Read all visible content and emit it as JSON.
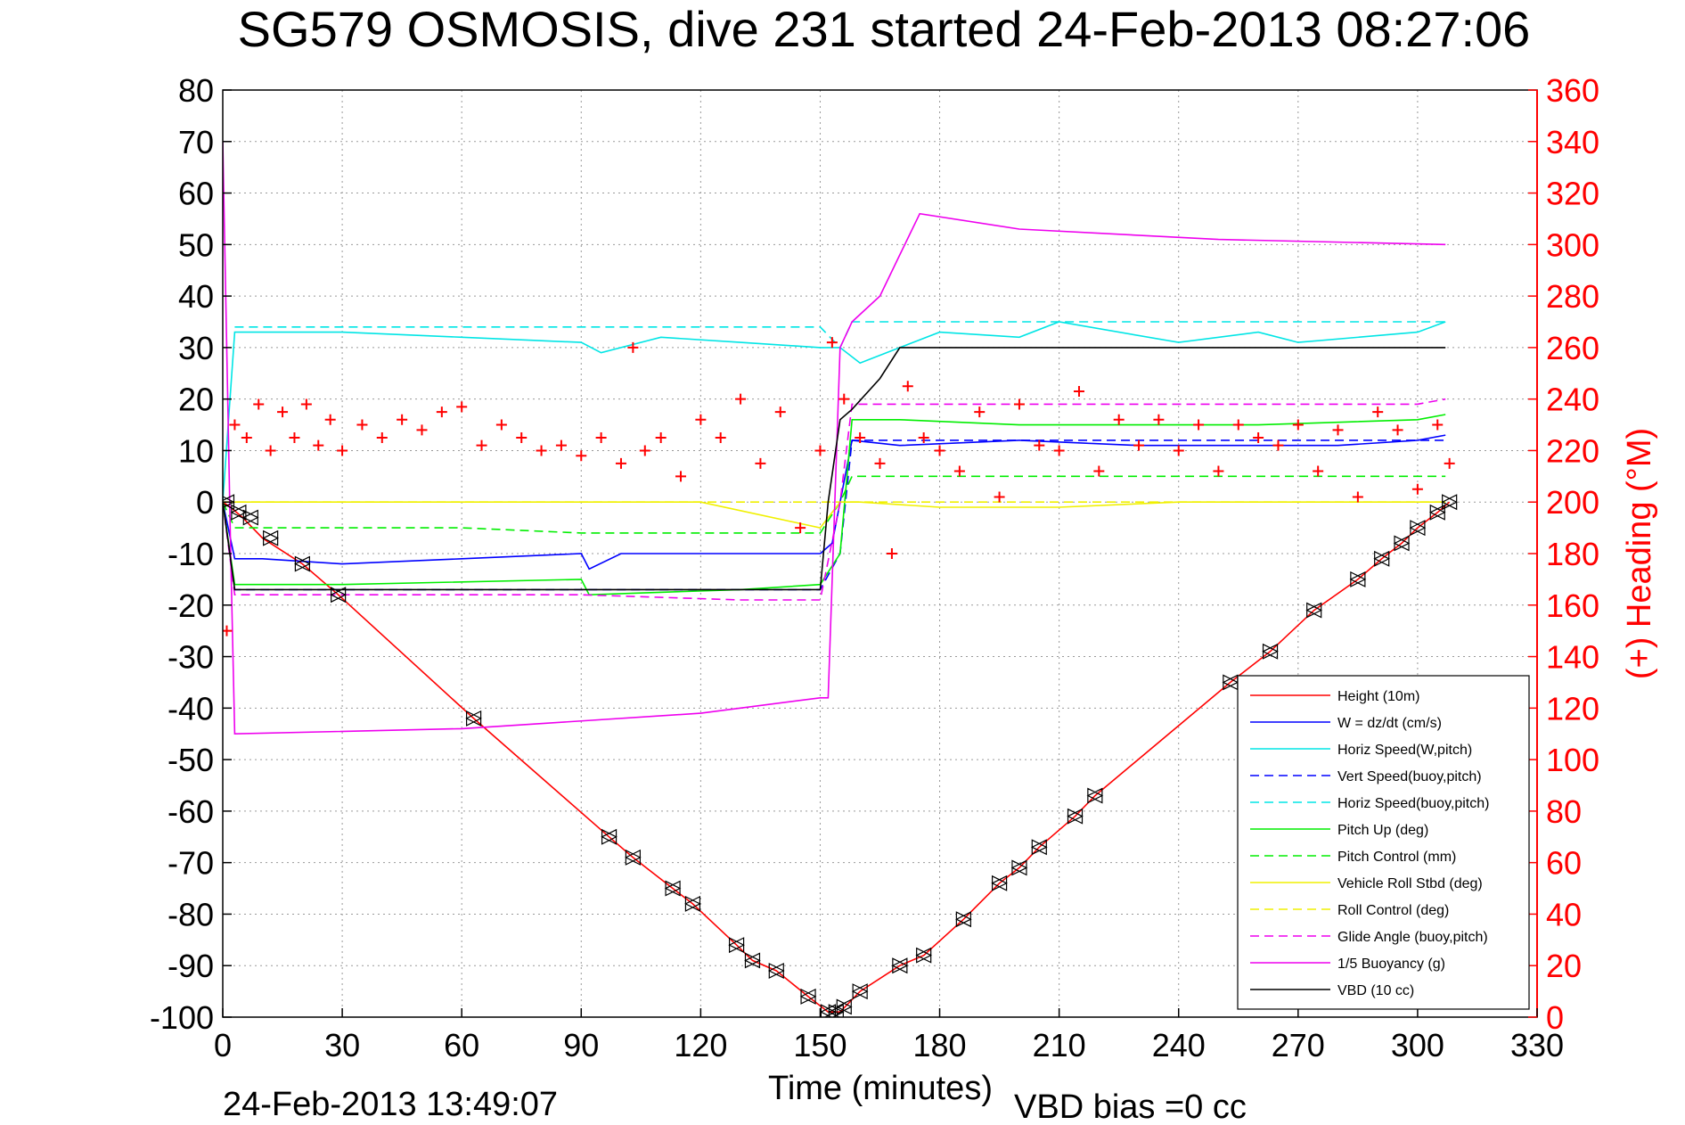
{
  "title": "SG579 OSMOSIS, dive 231 started 24-Feb-2013 08:27:06",
  "footer": {
    "timestamp": "24-Feb-2013 13:49:07",
    "vbd_bias": "VBD bias =0 cc"
  },
  "chart_data": {
    "type": "line",
    "title": "SG579 OSMOSIS, dive 231 started 24-Feb-2013 08:27:06",
    "xlabel": "Time (minutes)",
    "ylabel": "",
    "y2label": "(+) Heading (°M)",
    "xlim": [
      0,
      330
    ],
    "ylim": [
      -100,
      80
    ],
    "y2lim": [
      0,
      360
    ],
    "xticks": [
      "0",
      "30",
      "60",
      "90",
      "120",
      "150",
      "180",
      "210",
      "240",
      "270",
      "300",
      "330"
    ],
    "yticks": [
      "80",
      "70",
      "60",
      "50",
      "40",
      "30",
      "20",
      "10",
      "0",
      "-10",
      "-20",
      "-30",
      "-40",
      "-50",
      "-60",
      "-70",
      "-80",
      "-90",
      "-100"
    ],
    "y2ticks": [
      "360",
      "340",
      "320",
      "300",
      "280",
      "260",
      "240",
      "220",
      "200",
      "180",
      "160",
      "140",
      "120",
      "100",
      "80",
      "60",
      "40",
      "20",
      "0"
    ],
    "grid": true,
    "legend_position": "bottom-right",
    "colors": {
      "red": "#ff0000",
      "blue": "#0000ff",
      "cyan": "#00e5e5",
      "green": "#00ee00",
      "yellow": "#f0f000",
      "magenta": "#ee00ee",
      "black": "#000000"
    },
    "series": [
      {
        "name": "Height (10m)",
        "color": "#ff0000",
        "style": "solid",
        "x": [
          0,
          2,
          5,
          10,
          20,
          29,
          63,
          97,
          103,
          113,
          118,
          129,
          133,
          139,
          147,
          152,
          155,
          160,
          170,
          176,
          186,
          195,
          200,
          205,
          214,
          219,
          253,
          263,
          274,
          285,
          291,
          296,
          300,
          305,
          308
        ],
        "y": [
          0,
          -1,
          -3,
          -7,
          -12,
          -18,
          -42,
          -65,
          -69,
          -75,
          -78,
          -86,
          -89,
          -91,
          -96,
          -99,
          -99,
          -95,
          -90,
          -88,
          -81,
          -74,
          -71,
          -67,
          -61,
          -57,
          -35,
          -29,
          -21,
          -15,
          -11,
          -8,
          -5,
          -2,
          0
        ]
      },
      {
        "name": "W = dz/dt (cm/s)",
        "color": "#0000ff",
        "style": "solid",
        "x": [
          0,
          3,
          10,
          30,
          60,
          90,
          92,
          100,
          130,
          150,
          153,
          158,
          170,
          200,
          230,
          260,
          280,
          300,
          307
        ],
        "y": [
          0,
          -11,
          -11,
          -12,
          -11,
          -10,
          -13,
          -10,
          -10,
          -10,
          -8,
          12,
          11,
          12,
          11,
          11,
          11,
          12,
          13
        ]
      },
      {
        "name": "Horiz Speed(W,pitch)",
        "color": "#00e5e5",
        "style": "solid",
        "x": [
          0,
          3,
          10,
          30,
          60,
          90,
          95,
          110,
          130,
          150,
          155,
          160,
          170,
          180,
          200,
          210,
          240,
          260,
          270,
          300,
          307
        ],
        "y": [
          0,
          33,
          33,
          33,
          32,
          31,
          29,
          32,
          31,
          30,
          30,
          27,
          30,
          33,
          32,
          35,
          31,
          33,
          31,
          33,
          35
        ]
      },
      {
        "name": "Vert Speed(buoy,pitch)",
        "color": "#0000ff",
        "style": "dashed",
        "x": [
          0,
          3,
          150,
          155,
          158,
          300,
          307
        ],
        "y": [
          0,
          -17,
          -17,
          -10,
          12,
          12,
          12
        ]
      },
      {
        "name": "Horiz Speed(buoy,pitch)",
        "color": "#00e5e5",
        "style": "dashed",
        "x": [
          3,
          150,
          155,
          158,
          300,
          307
        ],
        "y": [
          34,
          34,
          30,
          35,
          35,
          35
        ]
      },
      {
        "name": "Pitch Up (deg)",
        "color": "#00ee00",
        "style": "solid",
        "x": [
          0,
          3,
          20,
          30,
          90,
          92,
          130,
          150,
          155,
          158,
          170,
          200,
          260,
          300,
          307
        ],
        "y": [
          0,
          -16,
          -16,
          -16,
          -15,
          -18,
          -17,
          -16,
          -10,
          16,
          16,
          15,
          15,
          16,
          17
        ]
      },
      {
        "name": "Pitch Control (mm)",
        "color": "#00ee00",
        "style": "dashed",
        "x": [
          0,
          3,
          60,
          90,
          130,
          150,
          155,
          158,
          300,
          307
        ],
        "y": [
          0,
          -5,
          -5,
          -6,
          -6,
          -6,
          0,
          5,
          5,
          5
        ]
      },
      {
        "name": "Vehicle Roll Stbd (deg)",
        "color": "#f0f000",
        "style": "solid",
        "x": [
          0,
          3,
          30,
          60,
          90,
          120,
          150,
          155,
          160,
          180,
          210,
          240,
          270,
          300,
          307
        ],
        "y": [
          0,
          0,
          0,
          0,
          0,
          0,
          -5,
          0,
          0,
          -1,
          -1,
          0,
          0,
          0,
          0
        ]
      },
      {
        "name": "Roll Control (deg)",
        "color": "#f0f000",
        "style": "dashed",
        "x": [
          0,
          307
        ],
        "y": [
          0,
          0
        ]
      },
      {
        "name": "Glide Angle (buoy,pitch)",
        "color": "#ee00ee",
        "style": "dashed",
        "x": [
          0,
          3,
          90,
          130,
          150,
          155,
          158,
          300,
          307
        ],
        "y": [
          0,
          -18,
          -18,
          -19,
          -19,
          0,
          19,
          19,
          20
        ]
      },
      {
        "name": "1/5 Buoyancy (g)",
        "color": "#ee00ee",
        "style": "solid",
        "x": [
          0,
          2,
          3,
          60,
          120,
          150,
          152,
          155,
          158,
          165,
          170,
          175,
          200,
          250,
          307
        ],
        "y": [
          70,
          -10,
          -45,
          -44,
          -41,
          -38,
          -38,
          30,
          35,
          40,
          48,
          56,
          53,
          51,
          50
        ]
      },
      {
        "name": "VBD (10 cc)",
        "color": "#000000",
        "style": "solid",
        "x": [
          0,
          3,
          150,
          152,
          155,
          158,
          165,
          170,
          307
        ],
        "y": [
          0,
          -17,
          -17,
          0,
          16,
          18,
          24,
          30,
          30
        ]
      }
    ],
    "heading": {
      "name": "Heading",
      "color": "#ff0000",
      "marker": "+",
      "x": [
        1,
        3,
        6,
        9,
        12,
        15,
        18,
        21,
        24,
        27,
        30,
        35,
        40,
        45,
        50,
        55,
        60,
        65,
        70,
        75,
        80,
        85,
        90,
        95,
        100,
        103,
        106,
        110,
        115,
        120,
        125,
        130,
        135,
        140,
        145,
        150,
        153,
        156,
        160,
        165,
        168,
        172,
        176,
        180,
        185,
        190,
        195,
        200,
        205,
        210,
        215,
        220,
        225,
        230,
        235,
        240,
        245,
        250,
        255,
        260,
        265,
        270,
        275,
        280,
        285,
        290,
        295,
        300,
        305,
        308
      ],
      "y": [
        150,
        230,
        225,
        238,
        220,
        235,
        225,
        238,
        222,
        232,
        220,
        230,
        225,
        232,
        228,
        235,
        237,
        222,
        230,
        225,
        220,
        222,
        218,
        225,
        215,
        260,
        220,
        225,
        210,
        232,
        225,
        240,
        215,
        235,
        190,
        220,
        262,
        240,
        225,
        215,
        180,
        245,
        225,
        220,
        212,
        235,
        202,
        238,
        222,
        220,
        243,
        212,
        232,
        222,
        232,
        220,
        230,
        212,
        230,
        225,
        222,
        230,
        212,
        228,
        202,
        235,
        228,
        205,
        230,
        215
      ]
    },
    "markers": {
      "x": [
        1,
        4,
        7,
        12,
        20,
        29,
        63,
        97,
        103,
        113,
        118,
        129,
        133,
        139,
        147,
        152,
        154,
        156,
        160,
        170,
        176,
        186,
        195,
        200,
        205,
        214,
        219,
        253,
        263,
        274,
        285,
        291,
        296,
        300,
        305,
        308
      ],
      "y": [
        0,
        -2,
        -3,
        -7,
        -12,
        -18,
        -42,
        -65,
        -69,
        -75,
        -78,
        -86,
        -89,
        -91,
        -96,
        -99,
        -99,
        -98,
        -95,
        -90,
        -88,
        -81,
        -74,
        -71,
        -67,
        -61,
        -57,
        -35,
        -29,
        -21,
        -15,
        -11,
        -8,
        -5,
        -2,
        0
      ]
    }
  }
}
